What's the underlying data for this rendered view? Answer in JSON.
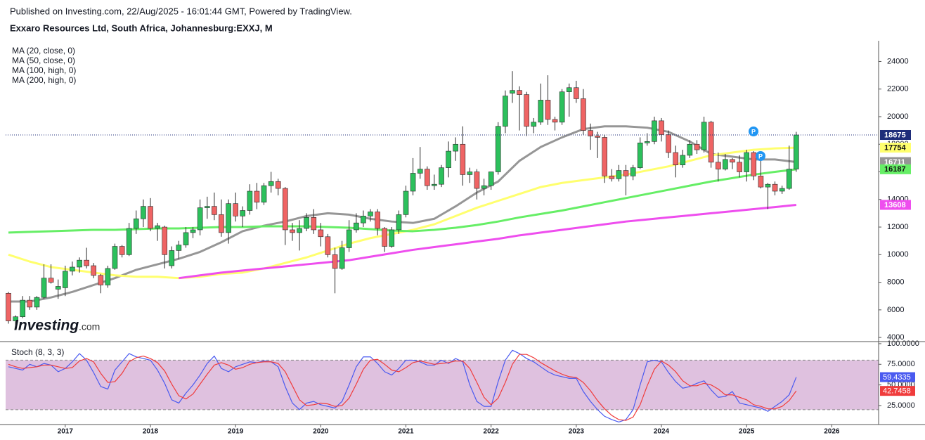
{
  "header": {
    "published": "Published on Investing.com, 22/Aug/2025 - 16:01:44 GMT, Powered by TradingView.",
    "watermark": {
      "brand": "Investing",
      "suffix": ".com"
    }
  },
  "chart_data": {
    "type": "candlestick",
    "title": "Exxaro Resources Ltd, South Africa, Johannesburg:EXXJ, M",
    "up_color": "#2cc05c",
    "down_color": "#ef6464",
    "wick_color": "#2a2a2a",
    "price_line_color": "#1f2d7a",
    "events": [
      "P",
      "P"
    ],
    "xlim": [
      2016.3,
      2026.55
    ],
    "ylim": [
      3700,
      25500
    ],
    "yticks": [
      4000,
      6000,
      8000,
      10000,
      12000,
      14000,
      16000,
      18000,
      20000,
      22000,
      24000
    ],
    "x": [
      2016.333,
      2016.417,
      2016.5,
      2016.583,
      2016.667,
      2016.75,
      2016.833,
      2016.917,
      2017,
      2017.083,
      2017.167,
      2017.25,
      2017.333,
      2017.417,
      2017.5,
      2017.583,
      2017.667,
      2017.75,
      2017.833,
      2017.917,
      2018,
      2018.083,
      2018.167,
      2018.25,
      2018.333,
      2018.417,
      2018.5,
      2018.583,
      2018.667,
      2018.75,
      2018.833,
      2018.917,
      2019,
      2019.083,
      2019.167,
      2019.25,
      2019.333,
      2019.417,
      2019.5,
      2019.583,
      2019.667,
      2019.75,
      2019.833,
      2019.917,
      2020,
      2020.083,
      2020.167,
      2020.25,
      2020.333,
      2020.417,
      2020.5,
      2020.583,
      2020.667,
      2020.75,
      2020.833,
      2020.917,
      2021,
      2021.083,
      2021.167,
      2021.25,
      2021.333,
      2021.417,
      2021.5,
      2021.583,
      2021.667,
      2021.75,
      2021.833,
      2021.917,
      2022,
      2022.083,
      2022.167,
      2022.25,
      2022.333,
      2022.417,
      2022.5,
      2022.583,
      2022.667,
      2022.75,
      2022.833,
      2022.917,
      2023,
      2023.083,
      2023.167,
      2023.25,
      2023.333,
      2023.417,
      2023.5,
      2023.583,
      2023.667,
      2023.75,
      2023.833,
      2023.917,
      2024,
      2024.083,
      2024.167,
      2024.25,
      2024.333,
      2024.417,
      2024.5,
      2024.583,
      2024.667,
      2024.75,
      2024.833,
      2024.917,
      2025,
      2025.083,
      2025.167,
      2025.25,
      2025.333,
      2025.417,
      2025.5,
      2025.583
    ],
    "open": [
      7200,
      5200,
      5500,
      6700,
      6200,
      6900,
      8300,
      7500,
      7600,
      8800,
      9100,
      9600,
      9200,
      8500,
      7800,
      9000,
      10600,
      10000,
      11900,
      12600,
      13500,
      11900,
      12000,
      9200,
      10300,
      10700,
      11600,
      11800,
      13400,
      13500,
      12900,
      11600,
      13700,
      12800,
      13200,
      14600,
      13800,
      15000,
      15300,
      14800,
      11800,
      11600,
      11900,
      12700,
      11800,
      11300,
      10000,
      9000,
      10500,
      11800,
      12300,
      12800,
      13100,
      11900,
      10600,
      11800,
      12900,
      14600,
      15900,
      16200,
      15000,
      15100,
      16300,
      17500,
      18000,
      15800,
      16000,
      14800,
      15000,
      16000,
      19300,
      21700,
      21900,
      21600,
      19300,
      19600,
      21200,
      19800,
      19600,
      21800,
      22100,
      21300,
      19000,
      18600,
      18500,
      15700,
      15500,
      16100,
      15700,
      16300,
      18100,
      18200,
      19700,
      18700,
      17400,
      16500,
      17200,
      18000,
      17600,
      19600,
      16700,
      16200,
      16900,
      16700,
      16000,
      17400,
      15700,
      14900,
      15100,
      14600,
      14800,
      16200
    ],
    "high": [
      7300,
      5600,
      7000,
      7000,
      7000,
      9300,
      9300,
      8200,
      9200,
      9500,
      9800,
      10500,
      9400,
      8600,
      9200,
      10800,
      10700,
      12300,
      13200,
      14000,
      14100,
      12300,
      12100,
      10600,
      11000,
      12000,
      12000,
      14000,
      14200,
      14500,
      14000,
      14000,
      14500,
      13500,
      15100,
      15200,
      15200,
      16000,
      15500,
      14900,
      12300,
      12500,
      13000,
      13300,
      12300,
      11500,
      10500,
      11000,
      12500,
      13000,
      13200,
      13300,
      13300,
      12000,
      12000,
      13200,
      15000,
      17000,
      17800,
      16400,
      15800,
      16500,
      18200,
      18500,
      19300,
      16300,
      16200,
      15500,
      16000,
      19600,
      21900,
      23300,
      22200,
      21800,
      19900,
      22400,
      23000,
      20000,
      22000,
      22400,
      22600,
      22000,
      19500,
      18900,
      18700,
      16200,
      16500,
      16500,
      16500,
      18500,
      18800,
      20000,
      19900,
      19000,
      17900,
      17600,
      18300,
      18300,
      20000,
      19700,
      17400,
      17300,
      17000,
      17200,
      17600,
      17500,
      16900,
      15200,
      15300,
      15000,
      17900,
      18900
    ],
    "low": [
      5000,
      4900,
      5400,
      6000,
      6000,
      6800,
      7900,
      6800,
      7000,
      8500,
      8700,
      9000,
      8300,
      7200,
      7600,
      8900,
      9800,
      9900,
      11500,
      12000,
      11700,
      11000,
      9000,
      9000,
      9700,
      10500,
      11200,
      11400,
      12600,
      12500,
      11300,
      10800,
      12400,
      12000,
      12900,
      13300,
      13600,
      14500,
      14300,
      10700,
      11000,
      10300,
      11700,
      11500,
      10600,
      9800,
      7200,
      8900,
      10200,
      11600,
      12000,
      12400,
      11400,
      10200,
      10500,
      11500,
      12700,
      14300,
      15500,
      14700,
      14700,
      14900,
      15600,
      16800,
      15000,
      15200,
      14000,
      14300,
      14700,
      15800,
      18800,
      21000,
      19000,
      18600,
      18800,
      19400,
      19400,
      19000,
      19400,
      20000,
      21000,
      18700,
      17600,
      17000,
      15200,
      15300,
      15300,
      14300,
      15400,
      16200,
      17900,
      18000,
      18200,
      17000,
      15600,
      16300,
      17000,
      17300,
      17400,
      16300,
      15300,
      16100,
      16200,
      15600,
      15300,
      15400,
      14800,
      13300,
      14300,
      14400,
      14700,
      16000
    ],
    "close": [
      5200,
      5500,
      6700,
      6200,
      6900,
      8300,
      8000,
      7700,
      8800,
      9100,
      9600,
      9200,
      8500,
      7800,
      9000,
      10600,
      10000,
      11900,
      12600,
      13500,
      11900,
      12100,
      10000,
      10300,
      10700,
      11600,
      11800,
      13400,
      13500,
      12900,
      11600,
      13700,
      12800,
      13200,
      14600,
      13800,
      15000,
      15300,
      14800,
      11800,
      11600,
      11900,
      12700,
      11800,
      11300,
      10000,
      9000,
      10500,
      11800,
      12300,
      12800,
      13100,
      11900,
      10600,
      11800,
      12900,
      14600,
      15900,
      16200,
      15000,
      15100,
      16300,
      17500,
      18000,
      15800,
      16000,
      14800,
      15000,
      16000,
      19300,
      21500,
      21900,
      21600,
      19300,
      19600,
      21200,
      19800,
      19600,
      21800,
      22100,
      21300,
      19000,
      18600,
      18500,
      15700,
      15500,
      16100,
      15700,
      16300,
      18100,
      18200,
      19700,
      18700,
      17400,
      16500,
      17200,
      18000,
      17600,
      19600,
      16700,
      16200,
      16900,
      16700,
      16000,
      17400,
      15700,
      14900,
      15100,
      14600,
      14800,
      16200,
      18675
    ],
    "series": [
      {
        "name": "MA (20, close, 0)",
        "color": "#969696",
        "x": [
          2016.333,
          2016.583,
          2016.833,
          2017.083,
          2017.333,
          2017.583,
          2017.833,
          2018.083,
          2018.333,
          2018.583,
          2018.833,
          2019.083,
          2019.333,
          2019.583,
          2019.833,
          2020.083,
          2020.333,
          2020.583,
          2020.833,
          2021.083,
          2021.333,
          2021.583,
          2021.833,
          2022.083,
          2022.333,
          2022.583,
          2022.833,
          2023.083,
          2023.333,
          2023.583,
          2023.833,
          2024.083,
          2024.333,
          2024.583,
          2024.833,
          2025.083,
          2025.333,
          2025.583
        ],
        "values": [
          6600,
          6600,
          6900,
          7300,
          7800,
          8300,
          8900,
          9300,
          9700,
          10200,
          10900,
          11700,
          12100,
          12400,
          12800,
          13000,
          12900,
          12600,
          12400,
          12300,
          12600,
          13500,
          14500,
          15300,
          16800,
          17800,
          18500,
          19100,
          19300,
          19300,
          19200,
          18900,
          18200,
          17300,
          17100,
          16900,
          16900,
          16711
        ]
      },
      {
        "name": "MA (50, close, 0)",
        "color": "#ffff6e",
        "x": [
          2016.333,
          2016.583,
          2016.833,
          2017.083,
          2017.333,
          2017.583,
          2017.833,
          2018.083,
          2018.333,
          2018.583,
          2018.833,
          2019.083,
          2019.333,
          2019.583,
          2019.833,
          2020.083,
          2020.333,
          2020.583,
          2020.833,
          2021.083,
          2021.333,
          2021.583,
          2021.833,
          2022.083,
          2022.333,
          2022.583,
          2022.833,
          2023.083,
          2023.333,
          2023.583,
          2023.833,
          2024.083,
          2024.333,
          2024.583,
          2024.833,
          2025.083,
          2025.333,
          2025.583
        ],
        "values": [
          10000,
          9500,
          9100,
          8900,
          8700,
          8500,
          8400,
          8400,
          8300,
          8400,
          8600,
          8700,
          9000,
          9400,
          9800,
          10300,
          10800,
          11200,
          11500,
          11800,
          12200,
          12800,
          13400,
          13900,
          14400,
          14900,
          15200,
          15400,
          15600,
          15800,
          16100,
          16400,
          16800,
          17200,
          17400,
          17600,
          17700,
          17754
        ]
      },
      {
        "name": "MA (100, high, 0)",
        "color": "#66ee66",
        "x": [
          2016.333,
          2016.583,
          2016.833,
          2017.083,
          2017.333,
          2017.583,
          2017.833,
          2018.083,
          2018.333,
          2018.583,
          2018.833,
          2019.083,
          2019.333,
          2019.583,
          2019.833,
          2020.083,
          2020.333,
          2020.583,
          2020.833,
          2021.083,
          2021.333,
          2021.583,
          2021.833,
          2022.083,
          2022.333,
          2022.583,
          2022.833,
          2023.083,
          2023.333,
          2023.583,
          2023.833,
          2024.083,
          2024.333,
          2024.583,
          2024.833,
          2025.083,
          2025.333,
          2025.583
        ],
        "values": [
          11600,
          11650,
          11700,
          11750,
          11800,
          11800,
          11850,
          11900,
          11900,
          11950,
          12000,
          12000,
          12050,
          12050,
          12050,
          12000,
          11950,
          11850,
          11750,
          11700,
          11800,
          11950,
          12150,
          12400,
          12700,
          12950,
          13200,
          13500,
          13800,
          14100,
          14400,
          14700,
          15000,
          15300,
          15550,
          15800,
          16000,
          16187
        ]
      },
      {
        "name": "MA (200, high, 0)",
        "color": "#ee4eee",
        "x": [
          2016.333,
          2016.583,
          2016.833,
          2017.083,
          2017.333,
          2017.583,
          2017.833,
          2018.083,
          2018.333,
          2018.583,
          2018.833,
          2019.083,
          2019.333,
          2019.583,
          2019.833,
          2020.083,
          2020.333,
          2020.583,
          2020.833,
          2021.083,
          2021.333,
          2021.583,
          2021.833,
          2022.083,
          2022.333,
          2022.583,
          2022.833,
          2023.083,
          2023.333,
          2023.583,
          2023.833,
          2024.083,
          2024.333,
          2024.583,
          2024.833,
          2025.083,
          2025.333,
          2025.583
        ],
        "values": [
          null,
          null,
          null,
          null,
          null,
          null,
          null,
          null,
          8300,
          8500,
          8700,
          8850,
          9000,
          9150,
          9300,
          9450,
          9600,
          9850,
          10100,
          10350,
          10550,
          10750,
          10950,
          11150,
          11400,
          11600,
          11800,
          12000,
          12200,
          12400,
          12550,
          12700,
          12850,
          13000,
          13150,
          13300,
          13450,
          13608
        ]
      }
    ],
    "indicator": {
      "type": "line",
      "title": "Stoch (8, 3, 3)",
      "ylim": [
        2,
        102.5
      ],
      "yticks": [
        {
          "value": 100,
          "label": "100.0000"
        },
        {
          "value": 75,
          "label": "75.0000"
        },
        {
          "value": 50,
          "label": "50.0000"
        },
        {
          "value": 25,
          "label": "25.0000"
        }
      ],
      "band": [
        20,
        80
      ],
      "band_color": "#dcbadc",
      "xticks": [
        2017,
        2018,
        2019,
        2020,
        2021,
        2022,
        2023,
        2024,
        2025,
        2026
      ],
      "series": [
        {
          "color": "#4a5af0",
          "values": [
            72,
            70,
            68,
            75,
            72,
            76,
            74,
            66,
            70,
            78,
            88,
            80,
            65,
            48,
            45,
            68,
            78,
            88,
            84,
            82,
            80,
            68,
            52,
            32,
            28,
            40,
            50,
            62,
            76,
            85,
            70,
            66,
            72,
            75,
            78,
            77,
            79,
            78,
            72,
            48,
            28,
            20,
            28,
            30,
            26,
            24,
            22,
            30,
            50,
            72,
            84,
            84,
            76,
            66,
            62,
            70,
            80,
            80,
            78,
            74,
            74,
            80,
            76,
            82,
            78,
            50,
            30,
            24,
            24,
            54,
            80,
            92,
            88,
            82,
            78,
            72,
            66,
            62,
            60,
            58,
            58,
            42,
            30,
            20,
            12,
            8,
            5,
            8,
            20,
            50,
            78,
            80,
            78,
            65,
            54,
            46,
            48,
            52,
            55,
            44,
            35,
            36,
            42,
            28,
            26,
            24,
            22,
            18,
            24,
            30,
            38,
            59.4335
          ]
        },
        {
          "color": "#f03c3c",
          "values": [
            75,
            72,
            70,
            71,
            72,
            74,
            74,
            72,
            70,
            71,
            79,
            82,
            78,
            64,
            53,
            54,
            64,
            78,
            83,
            85,
            82,
            77,
            67,
            51,
            37,
            33,
            39,
            51,
            63,
            74,
            77,
            74,
            69,
            71,
            75,
            77,
            78,
            78,
            76,
            66,
            49,
            32,
            25,
            26,
            28,
            27,
            24,
            25,
            34,
            51,
            69,
            80,
            81,
            75,
            68,
            66,
            71,
            77,
            79,
            77,
            75,
            76,
            77,
            79,
            79,
            70,
            53,
            35,
            26,
            34,
            53,
            75,
            87,
            87,
            83,
            77,
            72,
            67,
            63,
            60,
            59,
            53,
            43,
            31,
            21,
            13,
            8,
            7,
            11,
            26,
            49,
            69,
            79,
            74,
            66,
            55,
            49,
            49,
            52,
            50,
            45,
            38,
            38,
            35,
            32,
            26,
            24,
            21,
            21,
            24,
            31,
            42.7458
          ]
        }
      ]
    }
  }
}
